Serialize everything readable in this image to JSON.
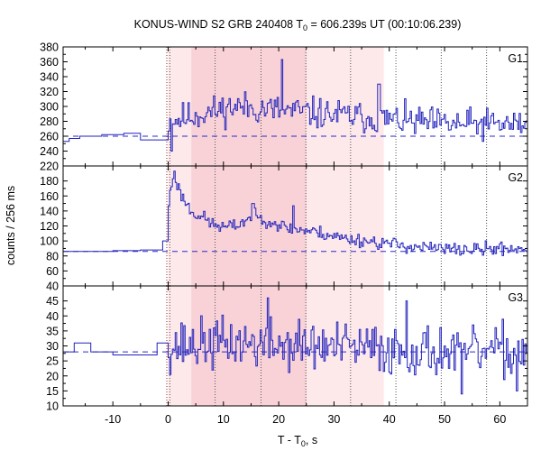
{
  "chart_data": {
    "type": "line",
    "title": "KONUS-WIND S2 GRB 240408 T",
    "title_sub": "0",
    "title_rest": " = 606.239s UT (00:10:06.239)",
    "xlabel": "T - T",
    "xlabel_sub": "0",
    "xlabel_rest": ", s",
    "ylabel": "counts / 256 ms",
    "xlim": [
      -19,
      65
    ],
    "x_ticks": [
      -10,
      0,
      10,
      20,
      30,
      40,
      50,
      60
    ],
    "x_ticklabels": [
      "-10",
      "0",
      "10",
      "20",
      "30",
      "40",
      "50",
      "60"
    ],
    "shaded_regions": [
      {
        "x0": 0,
        "x1": 39.0,
        "color": "#fde8ea"
      },
      {
        "x0": 4.2,
        "x1": 25.0,
        "color": "#f8d2d7"
      }
    ],
    "vertical_lines": [
      0.3,
      8.5,
      16.8,
      24.9,
      33.0,
      41.2,
      49.4,
      57.6
    ],
    "trigger_line": 0,
    "panels": [
      {
        "name": "G1",
        "ylim": [
          220,
          380
        ],
        "y_ticks": [
          220,
          240,
          260,
          280,
          300,
          320,
          340,
          360,
          380
        ],
        "y_ticklabels": [
          "220",
          "240",
          "260",
          "280",
          "300",
          "320",
          "340",
          "360",
          "380"
        ],
        "background": 260,
        "pre": [
          [
            -19,
            253
          ],
          [
            -17.9,
            257
          ],
          [
            -16,
            260
          ],
          [
            -12,
            262
          ],
          [
            -8,
            264
          ],
          [
            -5,
            255
          ],
          [
            -0.5,
            255
          ],
          [
            0,
            258
          ]
        ],
        "post_mean_start": 280,
        "post_mean_peak": 300,
        "post_mean_end": 276,
        "post_amp": 16,
        "seed": 11,
        "spikes": [
          [
            20.5,
            363
          ],
          [
            38.0,
            330
          ],
          [
            0.5,
            240
          ]
        ]
      },
      {
        "name": "G2",
        "ylim": [
          40,
          200
        ],
        "y_ticks": [
          40,
          60,
          80,
          100,
          120,
          140,
          160,
          180
        ],
        "y_ticklabels": [
          "40",
          "60",
          "80",
          "100",
          "120",
          "140",
          "160",
          "180"
        ],
        "background": 86,
        "pre": [
          [
            -19,
            86
          ],
          [
            -12,
            86
          ],
          [
            -10,
            87
          ],
          [
            -5,
            88
          ],
          [
            -2,
            88
          ],
          [
            -1,
            100
          ],
          [
            0,
            128
          ]
        ],
        "profile": [
          [
            0,
            150
          ],
          [
            0.5,
            175
          ],
          [
            1.0,
            188
          ],
          [
            2.0,
            165
          ],
          [
            4,
            140
          ],
          [
            6,
            132
          ],
          [
            8,
            122
          ],
          [
            10,
            118
          ],
          [
            12,
            120
          ],
          [
            15,
            132
          ],
          [
            18,
            128
          ],
          [
            21,
            118
          ],
          [
            24,
            115
          ],
          [
            28,
            110
          ],
          [
            32,
            103
          ],
          [
            36,
            100
          ],
          [
            40,
            96
          ],
          [
            45,
            92
          ],
          [
            50,
            89
          ],
          [
            55,
            88
          ],
          [
            60,
            90
          ],
          [
            65,
            90
          ]
        ],
        "post_amp": 7,
        "seed": 23,
        "spikes": [
          [
            1.0,
            193
          ],
          [
            22.5,
            147
          ],
          [
            15.2,
            150
          ]
        ]
      },
      {
        "name": "G3",
        "ylim": [
          10,
          50
        ],
        "y_ticks": [
          10,
          15,
          20,
          25,
          30,
          35,
          40,
          45
        ],
        "y_ticklabels": [
          "10",
          "15",
          "20",
          "25",
          "30",
          "35",
          "40",
          "45"
        ],
        "background": 28,
        "pre": [
          [
            -19,
            28
          ],
          [
            -17,
            31
          ],
          [
            -14,
            28
          ],
          [
            -10,
            27
          ],
          [
            -5,
            27
          ],
          [
            -2,
            31
          ],
          [
            0,
            33
          ]
        ],
        "post_mean_start": 30,
        "post_mean_peak": 31,
        "post_mean_end": 28,
        "post_amp": 6.5,
        "seed": 37,
        "spikes": [
          [
            18.0,
            46
          ],
          [
            43.0,
            45
          ],
          [
            53.0,
            14
          ],
          [
            63.0,
            15
          ]
        ]
      }
    ]
  }
}
